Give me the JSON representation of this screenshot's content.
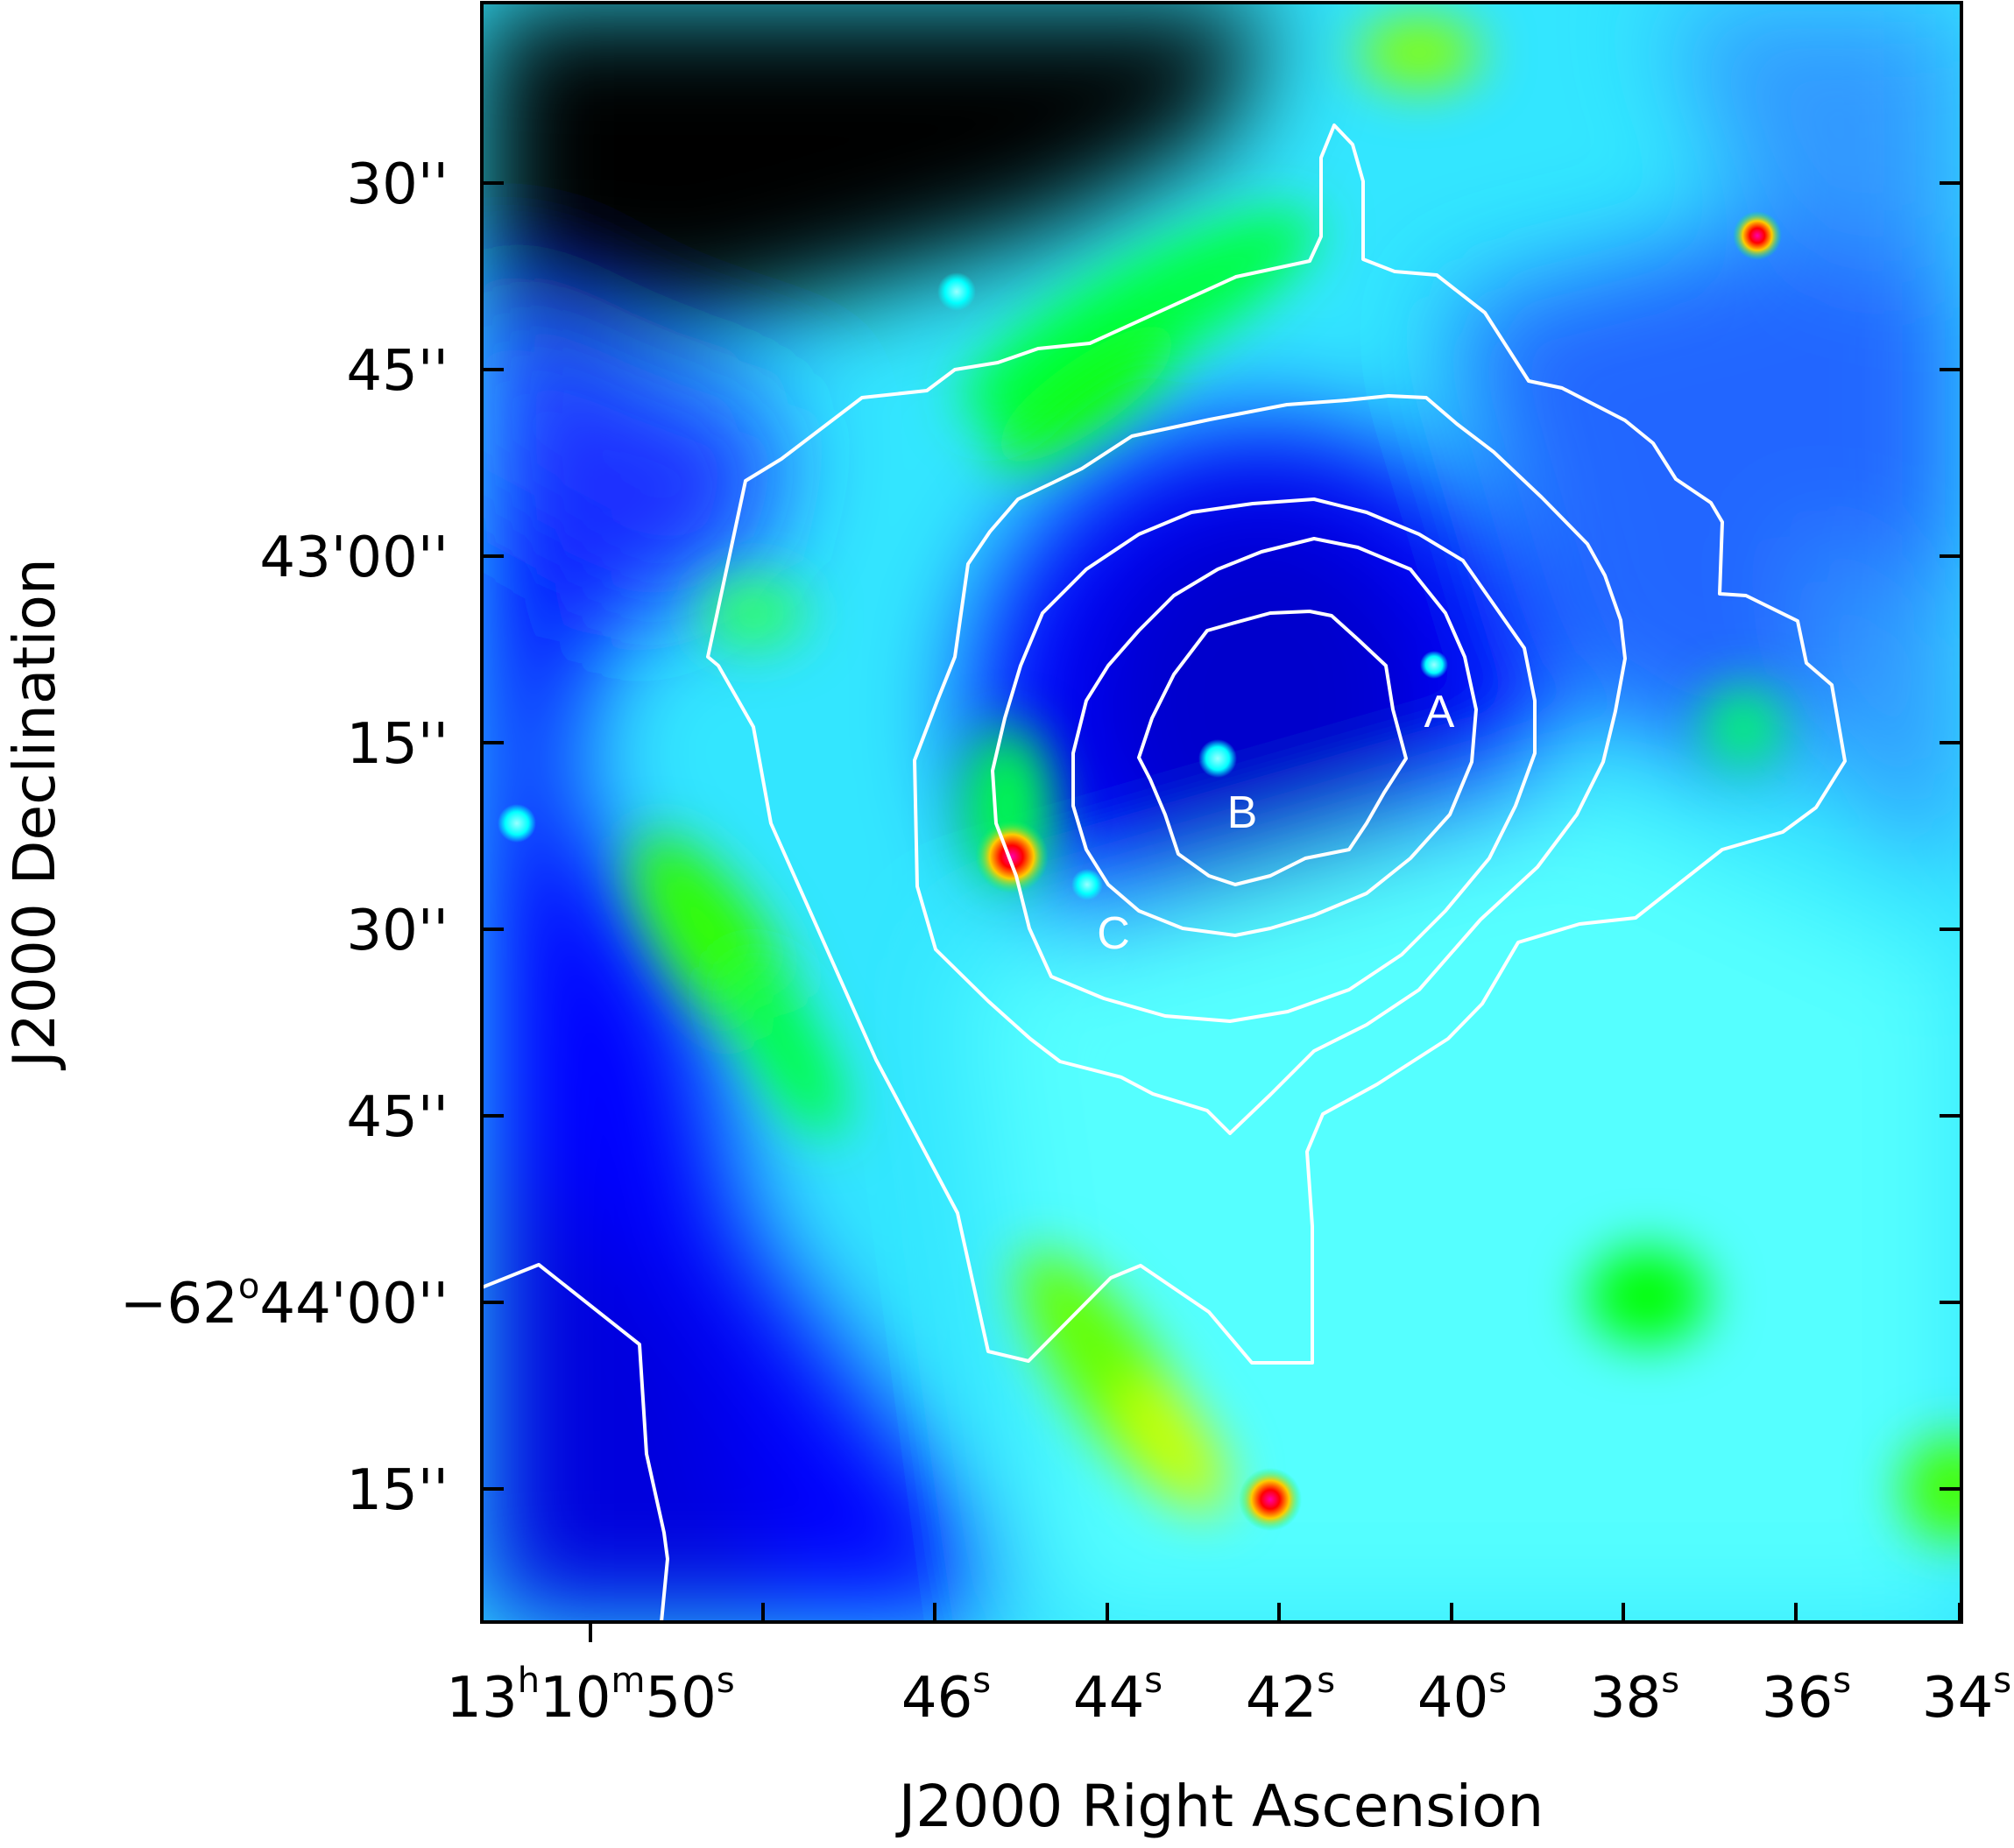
{
  "x_axis": {
    "title": "J2000 Right Ascension",
    "ticks": [
      {
        "h": "13",
        "m": "10",
        "s": "50"
      },
      {
        "s": "46"
      },
      {
        "s": "44"
      },
      {
        "s": "42"
      },
      {
        "s": "40"
      },
      {
        "s": "38"
      },
      {
        "s": "36"
      },
      {
        "s": "34"
      }
    ]
  },
  "y_axis": {
    "title": "J2000 Declination",
    "ticks": [
      {
        "label": "30''"
      },
      {
        "label": "45''"
      },
      {
        "label": "43'00''"
      },
      {
        "label": "15''"
      },
      {
        "label": "30''"
      },
      {
        "label": "45''"
      },
      {
        "prefix": "−62",
        "deg": "o",
        "rest": "44'00''"
      },
      {
        "label": "15''"
      }
    ]
  },
  "sources": [
    {
      "label": "A"
    },
    {
      "label": "B"
    },
    {
      "label": "C"
    }
  ],
  "colors": {
    "colormap": [
      "#000000",
      "#0000cc",
      "#0000ff",
      "#0066ff",
      "#00ffff",
      "#00ff66",
      "#00ff00",
      "#ffff00",
      "#ff8800",
      "#ff0000",
      "#ff00ff"
    ],
    "contour": "#ffffff"
  }
}
